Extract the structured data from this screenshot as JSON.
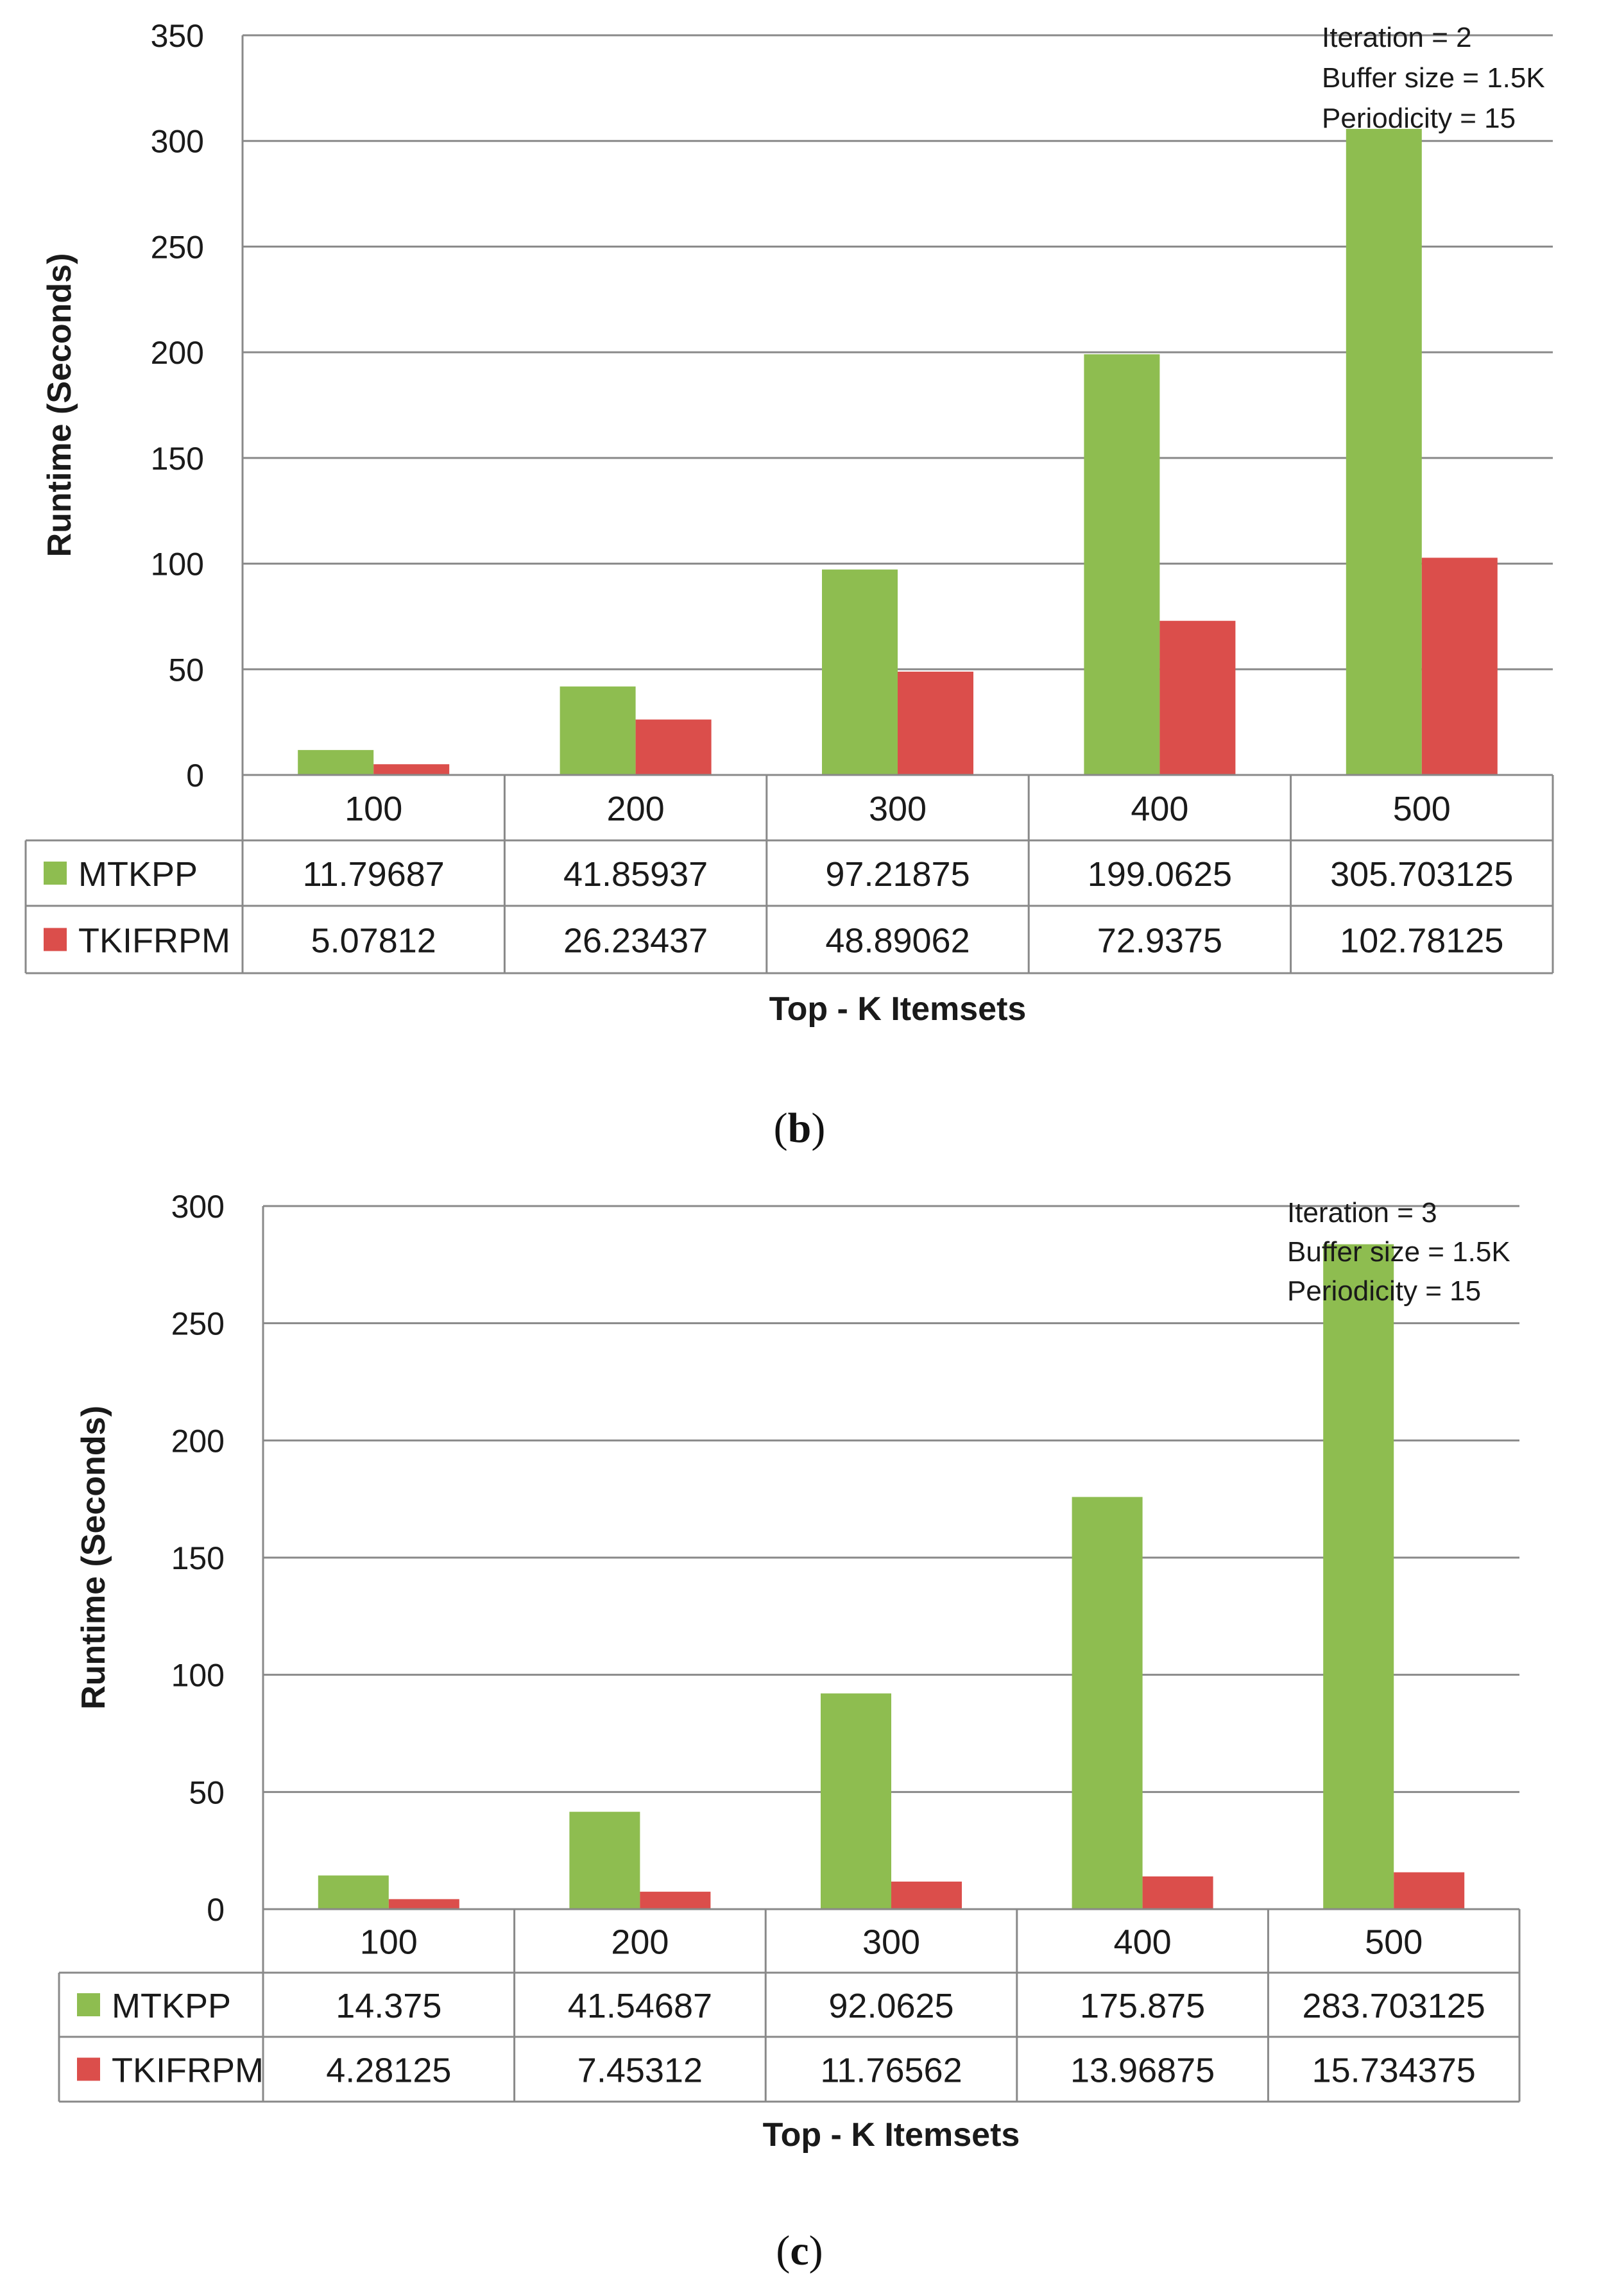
{
  "chart_data": [
    {
      "type": "bar",
      "caption_letter": "b",
      "categories": [
        "100",
        "200",
        "300",
        "400",
        "500"
      ],
      "series": [
        {
          "name": "MTKPP",
          "values": [
            11.79687,
            41.85937,
            97.21875,
            199.0625,
            305.703125
          ],
          "labels": [
            "11.79687",
            "41.85937",
            "97.21875",
            "199.0625",
            "305.703125"
          ]
        },
        {
          "name": "TKIFRPM",
          "values": [
            5.07812,
            26.23437,
            48.89062,
            72.9375,
            102.78125
          ],
          "labels": [
            "5.07812",
            "26.23437",
            "48.89062",
            "72.9375",
            "102.78125"
          ]
        }
      ],
      "ylabel": "Runtime (Seconds)",
      "xlabel": "Top - K Itemsets",
      "ylim": [
        0,
        350
      ],
      "yticks": [
        "0",
        "50",
        "100",
        "150",
        "200",
        "250",
        "300",
        "350"
      ],
      "annotation": [
        "Iteration = 2",
        "Buffer size = 1.5K",
        "Periodicity = 15"
      ]
    },
    {
      "type": "bar",
      "caption_letter": "c",
      "categories": [
        "100",
        "200",
        "300",
        "400",
        "500"
      ],
      "series": [
        {
          "name": "MTKPP",
          "values": [
            14.375,
            41.54687,
            92.0625,
            175.875,
            283.703125
          ],
          "labels": [
            "14.375",
            "41.54687",
            "92.0625",
            "175.875",
            "283.703125"
          ]
        },
        {
          "name": "TKIFRPM",
          "values": [
            4.28125,
            7.45312,
            11.76562,
            13.96875,
            15.734375
          ],
          "labels": [
            "4.28125",
            "7.45312",
            "11.76562",
            "13.96875",
            "15.734375"
          ]
        }
      ],
      "ylabel": "Runtime (Seconds)",
      "xlabel": "Top - K Itemsets",
      "ylim": [
        0,
        300
      ],
      "yticks": [
        "0",
        "50",
        "100",
        "150",
        "200",
        "250",
        "300"
      ],
      "annotation": [
        "Iteration = 3",
        "Buffer size = 1.5K",
        "Periodicity = 15"
      ]
    }
  ],
  "colors": {
    "MTKPP": "#8ebd50",
    "TKIFRPM": "#db4e4b",
    "grid": "#898989",
    "border": "#898989"
  }
}
